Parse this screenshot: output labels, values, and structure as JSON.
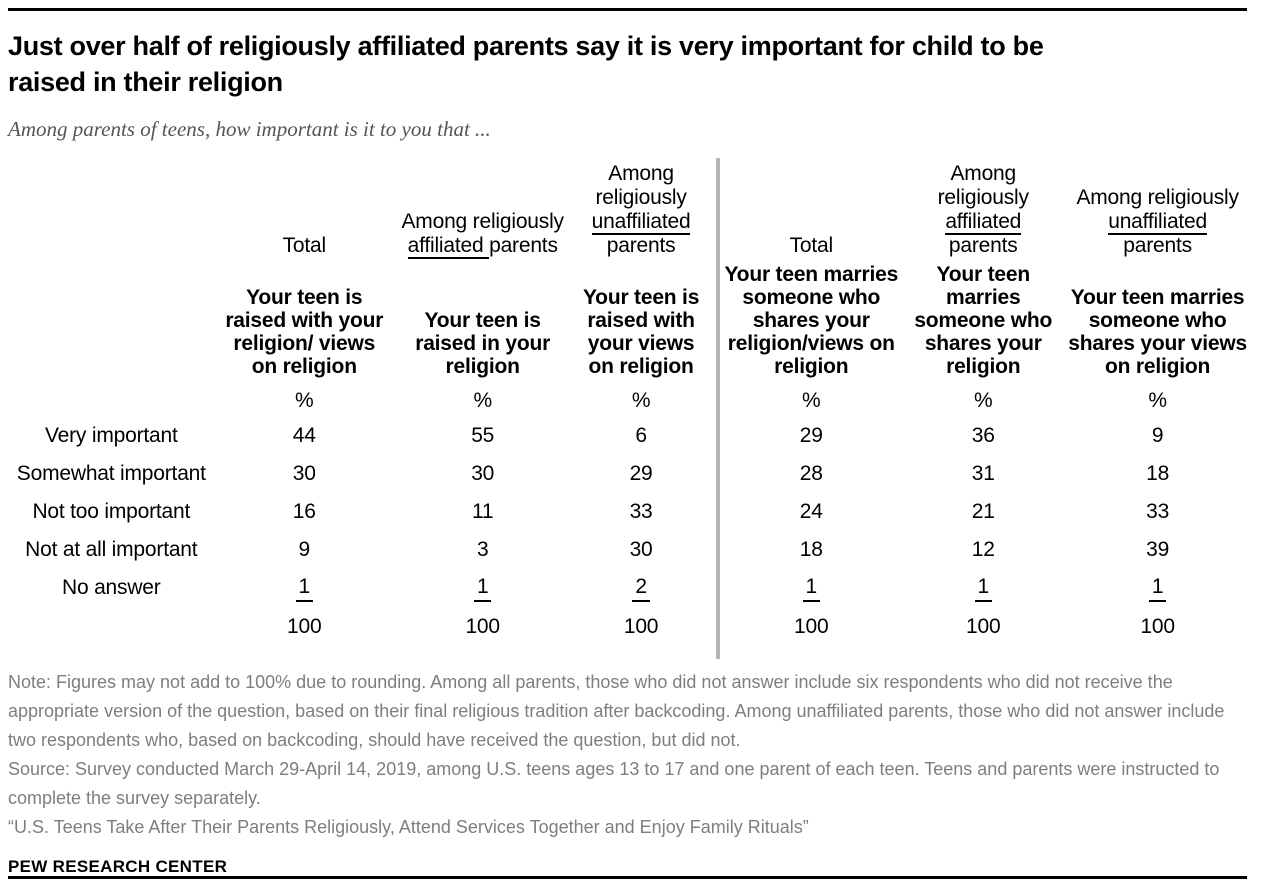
{
  "header": {
    "title_line1": "Just over half of religiously affiliated parents say it is very important for child to be",
    "title_line2": "raised in their religion",
    "subtitle": "Among parents of teens, how important is it to you that ..."
  },
  "chart_data": {
    "type": "table",
    "title": "Just over half of religiously affiliated parents say it is very important for child to be raised in their religion",
    "subtitle": "Among parents of teens, how important is it to you that ...",
    "unit": "%",
    "row_labels": [
      "Very important",
      "Somewhat important",
      "Not too important",
      "Not at all important",
      "No answer"
    ],
    "columns": [
      {
        "group_lines": [
          [
            {
              "t": "Total",
              "u": false
            }
          ]
        ],
        "question_lines": [
          "Your teen is",
          "raised with your",
          "religion/ views",
          "on religion"
        ],
        "values": [
          44,
          30,
          16,
          9,
          1
        ],
        "total": 100
      },
      {
        "group_lines": [
          [
            {
              "t": "Among religiously",
              "u": false
            }
          ],
          [
            {
              "t": "affiliated ",
              "u": true
            },
            {
              "t": "parents",
              "u": false
            }
          ]
        ],
        "question_lines": [
          "Your teen is",
          "raised in your",
          "religion"
        ],
        "values": [
          55,
          30,
          11,
          3,
          1
        ],
        "total": 100
      },
      {
        "group_lines": [
          [
            {
              "t": "Among",
              "u": false
            }
          ],
          [
            {
              "t": "religiously",
              "u": false
            }
          ],
          [
            {
              "t": "unaffiliated",
              "u": true
            }
          ],
          [
            {
              "t": "parents",
              "u": false
            }
          ]
        ],
        "question_lines": [
          "Your teen is",
          "raised with",
          "your views",
          "on religion"
        ],
        "values": [
          6,
          29,
          33,
          30,
          2
        ],
        "total": 100
      },
      {
        "group_lines": [
          [
            {
              "t": "Total",
              "u": false
            }
          ]
        ],
        "question_lines": [
          "Your teen marries",
          "someone who",
          "shares your",
          "religion/views on",
          "religion"
        ],
        "values": [
          29,
          28,
          24,
          18,
          1
        ],
        "total": 100
      },
      {
        "group_lines": [
          [
            {
              "t": "Among",
              "u": false
            }
          ],
          [
            {
              "t": "religiously",
              "u": false
            }
          ],
          [
            {
              "t": "affiliated",
              "u": true
            }
          ],
          [
            {
              "t": "parents",
              "u": false
            }
          ]
        ],
        "question_lines": [
          "Your teen",
          "marries",
          "someone who",
          "shares your",
          "religion"
        ],
        "values": [
          36,
          31,
          21,
          12,
          1
        ],
        "total": 100
      },
      {
        "group_lines": [
          [
            {
              "t": "Among religiously",
              "u": false
            }
          ],
          [
            {
              "t": "unaffiliated",
              "u": true
            }
          ],
          [
            {
              "t": "parents",
              "u": false
            }
          ]
        ],
        "question_lines": [
          "Your teen marries",
          "someone who",
          "shares your views",
          "on religion"
        ],
        "values": [
          9,
          18,
          33,
          39,
          1
        ],
        "total": 100
      }
    ]
  },
  "notes": {
    "note": "Note: Figures may not add to 100% due to rounding. Among all parents, those who did not answer include six respondents who did not receive the appropriate version of the question, based on their final religious tradition after backcoding. Among unaffiliated parents, those who did not answer include two respondents who, based on backcoding, should have received the question, but did not.",
    "source": "Source: Survey conducted March 29-April 14, 2019, among U.S. teens ages 13 to 17 and one parent of each teen. Teens and parents were instructed to complete the survey separately.",
    "report": "“U.S. Teens Take After Their Parents Religiously, Attend Services Together and Enjoy Family Rituals”"
  },
  "footer": {
    "brand": "PEW RESEARCH CENTER"
  }
}
